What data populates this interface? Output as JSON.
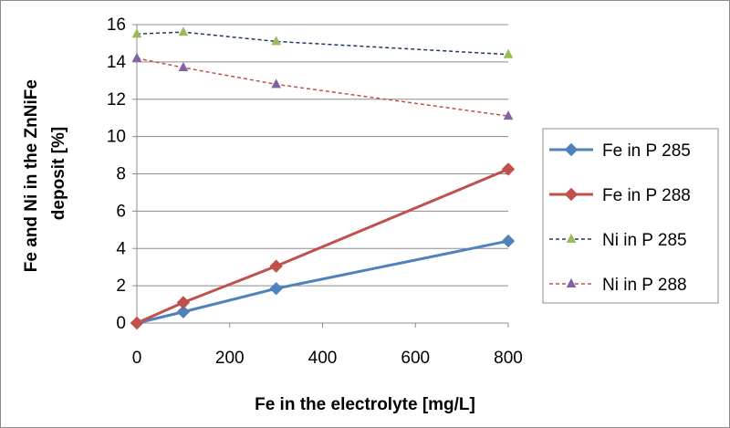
{
  "chart_data": {
    "type": "line",
    "title": "",
    "xlabel": "Fe in the electrolyte [mg/L]",
    "ylabel_lines": [
      "Fe and Ni in the ZnNiFe",
      "deposit [%]"
    ],
    "xlim": [
      0,
      800
    ],
    "ylim": [
      0,
      16
    ],
    "xticks": [
      0,
      200,
      400,
      600,
      800
    ],
    "yticks": [
      0,
      2,
      4,
      6,
      8,
      10,
      12,
      14,
      16
    ],
    "grid": "horizontal",
    "legend_position": "right",
    "series": [
      {
        "name": "Fe in P 285",
        "color": "#4f81bd",
        "style": "solid",
        "marker": "diamond",
        "x": [
          0,
          100,
          300,
          800
        ],
        "y": [
          0,
          0.6,
          1.85,
          4.4
        ]
      },
      {
        "name": "Fe in P 288",
        "color": "#c0504d",
        "style": "solid",
        "marker": "diamond",
        "x": [
          0,
          100,
          300,
          800
        ],
        "y": [
          0,
          1.1,
          3.05,
          8.25
        ]
      },
      {
        "name": "Ni in P 285",
        "color": "#1f3864",
        "marker_color": "#9bbb59",
        "style": "dashed",
        "marker": "triangle",
        "x": [
          0,
          100,
          300,
          800
        ],
        "y": [
          15.5,
          15.6,
          15.1,
          14.4
        ]
      },
      {
        "name": "Ni in P 288",
        "color": "#c0504d",
        "marker_color": "#8064a2",
        "style": "dashed",
        "marker": "triangle",
        "x": [
          0,
          100,
          300,
          800
        ],
        "y": [
          14.2,
          13.7,
          12.8,
          11.1
        ]
      }
    ]
  }
}
